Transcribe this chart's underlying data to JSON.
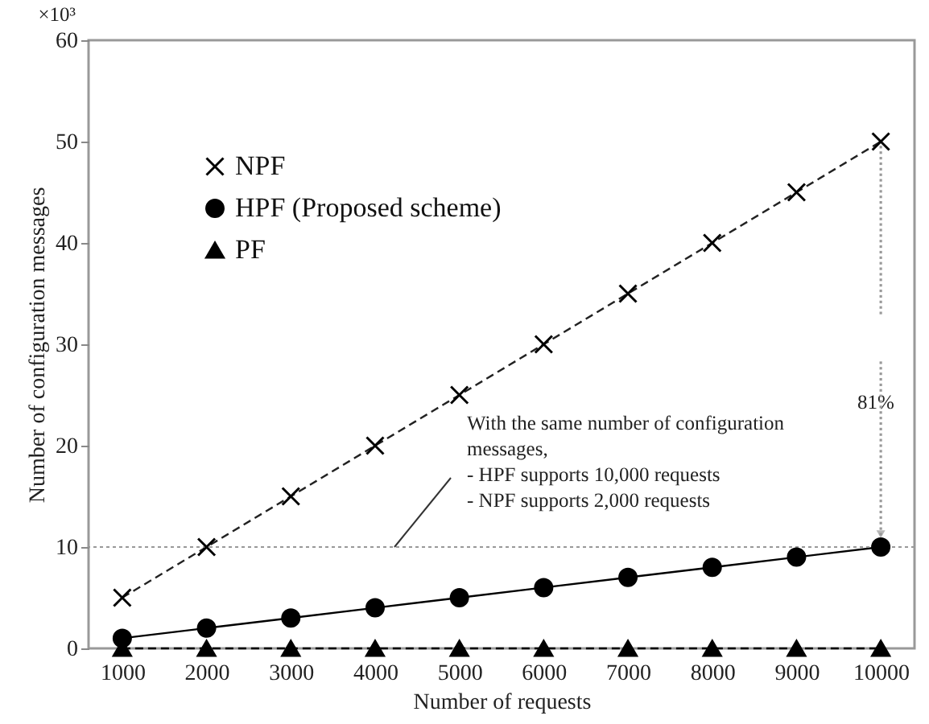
{
  "chart_data": {
    "type": "line",
    "xlabel": "Number of requests",
    "ylabel": "Number of configuration messages",
    "categories": [
      "1000",
      "2000",
      "3000",
      "4000",
      "5000",
      "6000",
      "7000",
      "8000",
      "9000",
      "10000"
    ],
    "series": [
      {
        "name": "NPF",
        "color": "#222222",
        "marker": "cross",
        "line_style": "dashed",
        "values": [
          5,
          10,
          15,
          20,
          25,
          30,
          35,
          40,
          45,
          50
        ]
      },
      {
        "name": "HPF (Proposed scheme)",
        "color": "#000000",
        "marker": "circle",
        "line_style": "solid",
        "values": [
          1,
          2,
          3,
          4,
          5,
          6,
          7,
          8,
          9,
          10
        ]
      },
      {
        "name": "PF",
        "color": "#000000",
        "marker": "triangle",
        "line_style": "dashed",
        "values": [
          0,
          0,
          0,
          0,
          0,
          0,
          0,
          0,
          0,
          0
        ]
      }
    ],
    "ylim": [
      0,
      60
    ],
    "yticks": [
      0,
      10,
      20,
      30,
      40,
      50,
      60
    ],
    "ref_lines": [
      {
        "axis": "y",
        "value": 10,
        "label": null,
        "color": "#999999",
        "line_style": "dotted"
      }
    ],
    "annotations": [
      "×10³",
      "81%",
      {
        "text": "With the same number of configuration\nmessages,\n-    HPF supports 10,000 requests\n-    NPF supports 2,000 requests",
        "y": 10
      }
    ],
    "legend": "top left",
    "grid": false
  }
}
